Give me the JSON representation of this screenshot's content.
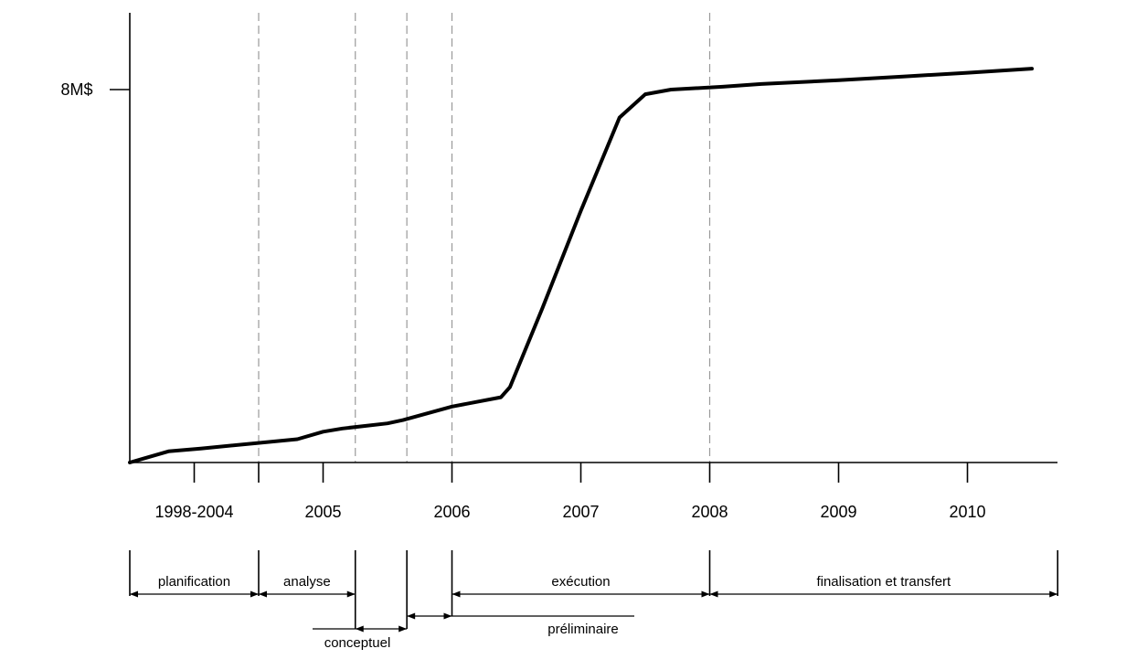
{
  "chart_data": {
    "type": "line",
    "title": "",
    "xlabel": "",
    "ylabel": "",
    "y_ticks": [
      {
        "value": 8,
        "label": "8M$"
      }
    ],
    "x_periods": [
      {
        "label": "1998-2004",
        "start": 0,
        "end": 1
      },
      {
        "label": "2005",
        "start": 1,
        "end": 2
      },
      {
        "label": "2006",
        "start": 2,
        "end": 3
      },
      {
        "label": "2007",
        "start": 3,
        "end": 4
      },
      {
        "label": "2008",
        "start": 4,
        "end": 5
      },
      {
        "label": "2009",
        "start": 5,
        "end": 6
      },
      {
        "label": "2010",
        "start": 6,
        "end": 7
      }
    ],
    "xlim": [
      0,
      7.2
    ],
    "ylim": [
      0,
      9.5
    ],
    "grid": false,
    "series": [
      {
        "x": [
          0,
          0.1,
          0.3,
          0.55,
          1.3,
          1.5,
          1.65,
          2.0,
          2.12,
          2.5,
          2.88,
          2.95,
          3.2,
          3.5,
          3.8,
          4.0,
          4.2,
          4.6,
          4.9,
          5.5,
          6.0,
          6.5,
          7.0
        ],
        "y": [
          0,
          0.08,
          0.24,
          0.3,
          0.5,
          0.66,
          0.73,
          0.84,
          0.91,
          1.2,
          1.4,
          1.62,
          3.3,
          5.4,
          7.4,
          7.9,
          8.0,
          8.06,
          8.12,
          8.2,
          8.28,
          8.36,
          8.45
        ]
      }
    ],
    "phase_boundaries": [
      1.0,
      1.75,
      2.15,
      2.5,
      4.5
    ],
    "phases": [
      {
        "label": "planification",
        "start": 0,
        "end": 1.0
      },
      {
        "label": "analyse",
        "start": 1.0,
        "end": 1.75
      },
      {
        "label": "conceptuel",
        "start": 1.75,
        "end": 2.15
      },
      {
        "label": "préliminaire",
        "start": 2.15,
        "end": 2.5
      },
      {
        "label": "exécution",
        "start": 2.5,
        "end": 4.5
      },
      {
        "label": "finalisation et transfert",
        "start": 4.5,
        "end": 7.2
      }
    ]
  }
}
